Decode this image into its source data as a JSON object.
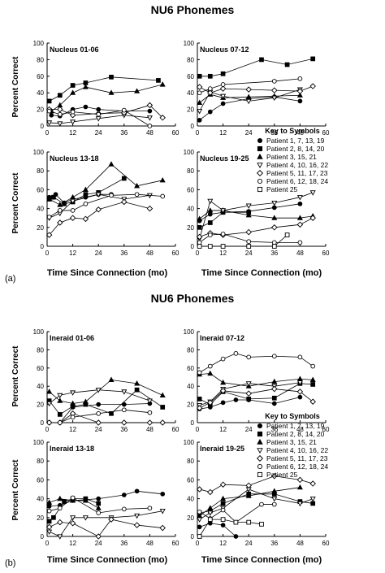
{
  "figure": {
    "title_a": "NU6 Phonemes",
    "title_b": "NU6 Phonemes",
    "label_a": "(a)",
    "label_b": "(b)",
    "ylabel": "Percent Correct",
    "xlabel": "Time Since Connection (mo)",
    "key_title": "Key to Symbols",
    "legend": [
      {
        "marker": "filled-circle",
        "label": "Patient 1, 7, 13, 19"
      },
      {
        "marker": "filled-square",
        "label": "Patient 2, 8, 14, 20"
      },
      {
        "marker": "filled-triangle",
        "label": "Patient 3, 15, 21"
      },
      {
        "marker": "open-down-triangle",
        "label": "Patient 4, 10, 16, 22"
      },
      {
        "marker": "open-diamond",
        "label": "Patient 5, 11, 17, 23"
      },
      {
        "marker": "open-circle",
        "label": "Patient 6, 12, 18, 24"
      },
      {
        "marker": "open-square",
        "label": "Patient 25"
      }
    ]
  },
  "chart_data": [
    {
      "type": "line",
      "title": "Nucleus 01-06",
      "xlim": [
        0,
        60
      ],
      "ylim": [
        0,
        100
      ],
      "xticks": [
        0,
        12,
        24,
        36,
        48,
        60
      ],
      "yticks": [
        0,
        20,
        40,
        60,
        80,
        100
      ],
      "series": [
        {
          "marker": "filled-circle",
          "x": [
            2,
            6,
            12,
            18,
            24,
            36,
            48
          ],
          "y": [
            13,
            12,
            20,
            23,
            20,
            18,
            18
          ]
        },
        {
          "marker": "filled-square",
          "x": [
            1,
            6,
            12,
            18,
            30,
            52
          ],
          "y": [
            30,
            37,
            49,
            52,
            59,
            55
          ]
        },
        {
          "marker": "filled-triangle",
          "x": [
            2,
            6,
            12,
            18,
            30,
            42,
            54
          ],
          "y": [
            18,
            25,
            40,
            47,
            40,
            42,
            50
          ]
        },
        {
          "marker": "open-down-triangle",
          "x": [
            1,
            6,
            12,
            24,
            36,
            48
          ],
          "y": [
            4,
            3,
            5,
            9,
            13,
            10
          ]
        },
        {
          "marker": "open-diamond",
          "x": [
            1,
            6,
            12,
            24,
            36,
            48,
            54
          ],
          "y": [
            20,
            20,
            13,
            15,
            16,
            25,
            10
          ]
        },
        {
          "marker": "open-circle",
          "x": [
            1,
            6,
            12,
            24,
            36,
            48
          ],
          "y": [
            18,
            14,
            17,
            14,
            19,
            0
          ]
        }
      ]
    },
    {
      "type": "line",
      "title": "Nucleus 07-12",
      "xlim": [
        0,
        60
      ],
      "ylim": [
        0,
        100
      ],
      "xticks": [
        0,
        12,
        24,
        36,
        48,
        60
      ],
      "yticks": [
        0,
        20,
        40,
        60,
        80,
        100
      ],
      "series": [
        {
          "marker": "filled-circle",
          "x": [
            1,
            6,
            12,
            24,
            36,
            48
          ],
          "y": [
            7,
            17,
            27,
            33,
            35,
            30
          ]
        },
        {
          "marker": "filled-square",
          "x": [
            1,
            6,
            12,
            30,
            42,
            54
          ],
          "y": [
            60,
            60,
            63,
            80,
            74,
            81
          ]
        },
        {
          "marker": "filled-triangle",
          "x": [
            1,
            6,
            12,
            24,
            36,
            48
          ],
          "y": [
            28,
            38,
            34,
            35,
            36,
            37
          ]
        },
        {
          "marker": "open-down-triangle",
          "x": [
            1,
            6,
            12,
            24,
            36,
            48
          ],
          "y": [
            18,
            41,
            36,
            30,
            34,
            44
          ]
        },
        {
          "marker": "open-diamond",
          "x": [
            1,
            6,
            12,
            24,
            36,
            48,
            54
          ],
          "y": [
            47,
            40,
            45,
            44,
            43,
            42,
            48
          ]
        },
        {
          "marker": "open-circle",
          "x": [
            1,
            6,
            12,
            36,
            48
          ],
          "y": [
            40,
            45,
            50,
            54,
            57
          ]
        }
      ]
    },
    {
      "type": "line",
      "title": "Nucleus 13-18",
      "xlim": [
        0,
        60
      ],
      "ylim": [
        0,
        100
      ],
      "xticks": [
        0,
        12,
        24,
        36,
        48,
        60
      ],
      "yticks": [
        0,
        20,
        40,
        60,
        80,
        100
      ],
      "series": [
        {
          "marker": "filled-circle",
          "x": [
            1,
            4,
            8,
            12,
            18,
            24,
            30
          ],
          "y": [
            52,
            55,
            46,
            50,
            52,
            55,
            55
          ]
        },
        {
          "marker": "filled-square",
          "x": [
            1,
            3,
            8,
            12,
            18,
            24,
            36
          ],
          "y": [
            50,
            52,
            45,
            47,
            55,
            57,
            72
          ]
        },
        {
          "marker": "filled-triangle",
          "x": [
            1,
            6,
            12,
            18,
            30,
            42,
            54
          ],
          "y": [
            50,
            44,
            52,
            60,
            87,
            64,
            70
          ]
        },
        {
          "marker": "open-down-triangle",
          "x": [
            1,
            6,
            12,
            24,
            36,
            48
          ],
          "y": [
            30,
            35,
            48,
            55,
            50,
            54
          ]
        },
        {
          "marker": "open-diamond",
          "x": [
            1,
            6,
            12,
            18,
            24,
            36,
            48
          ],
          "y": [
            12,
            25,
            30,
            29,
            39,
            47,
            40
          ]
        },
        {
          "marker": "open-circle",
          "x": [
            1,
            6,
            12,
            18,
            30,
            42,
            54
          ],
          "y": [
            31,
            38,
            38,
            45,
            54,
            55,
            53
          ]
        }
      ]
    },
    {
      "type": "line",
      "title": "Nucleus 19-25",
      "xlim": [
        0,
        60
      ],
      "ylim": [
        0,
        100
      ],
      "xticks": [
        0,
        12,
        24,
        36,
        48,
        60
      ],
      "yticks": [
        0,
        20,
        40,
        60,
        80,
        100
      ],
      "series": [
        {
          "marker": "filled-circle",
          "x": [
            1,
            6,
            12,
            24,
            36,
            48
          ],
          "y": [
            27,
            34,
            36,
            37,
            41,
            45
          ]
        },
        {
          "marker": "filled-square",
          "x": [
            1,
            6,
            12,
            24
          ],
          "y": [
            20,
            25,
            36,
            36
          ]
        },
        {
          "marker": "filled-triangle",
          "x": [
            1,
            6,
            12,
            24,
            36,
            48,
            54
          ],
          "y": [
            29,
            38,
            38,
            33,
            30,
            30,
            32
          ]
        },
        {
          "marker": "open-down-triangle",
          "x": [
            1,
            6,
            12,
            24,
            36,
            48,
            54
          ],
          "y": [
            8,
            48,
            38,
            43,
            46,
            52,
            57
          ]
        },
        {
          "marker": "open-diamond",
          "x": [
            1,
            6,
            12,
            24,
            36,
            48,
            54
          ],
          "y": [
            10,
            14,
            12,
            15,
            20,
            23,
            30
          ]
        },
        {
          "marker": "open-circle",
          "x": [
            1,
            6,
            12,
            24,
            36,
            48
          ],
          "y": [
            4,
            12,
            13,
            5,
            4,
            4
          ]
        },
        {
          "marker": "open-square",
          "x": [
            1,
            6,
            12,
            24,
            36,
            42
          ],
          "y": [
            0,
            0,
            0,
            0,
            0,
            12
          ]
        }
      ]
    },
    {
      "type": "line",
      "title": "Ineraid 01-06",
      "xlim": [
        0,
        60
      ],
      "ylim": [
        0,
        100
      ],
      "xticks": [
        0,
        12,
        24,
        36,
        48,
        60
      ],
      "yticks": [
        0,
        20,
        40,
        60,
        80,
        100
      ],
      "series": [
        {
          "marker": "filled-circle",
          "x": [
            1,
            6,
            12,
            24,
            36,
            48
          ],
          "y": [
            0,
            0,
            17,
            20,
            20,
            21
          ]
        },
        {
          "marker": "filled-square",
          "x": [
            1,
            6,
            12,
            18,
            30,
            42,
            54
          ],
          "y": [
            24,
            9,
            18,
            20,
            10,
            36,
            17
          ]
        },
        {
          "marker": "filled-triangle",
          "x": [
            1,
            6,
            12,
            18,
            30,
            42,
            54
          ],
          "y": [
            34,
            24,
            21,
            23,
            47,
            43,
            30
          ]
        },
        {
          "marker": "open-down-triangle",
          "x": [
            1,
            6,
            12,
            24,
            36,
            48
          ],
          "y": [
            21,
            30,
            33,
            36,
            34,
            24
          ]
        },
        {
          "marker": "open-diamond",
          "x": [
            1,
            6,
            12,
            24,
            36,
            48,
            54
          ],
          "y": [
            0,
            0,
            10,
            0,
            0,
            0,
            0
          ]
        },
        {
          "marker": "open-circle",
          "x": [
            1,
            6,
            12,
            24,
            36,
            48
          ],
          "y": [
            0,
            0,
            6,
            10,
            14,
            11
          ]
        }
      ]
    },
    {
      "type": "line",
      "title": "Ineraid 07-12",
      "xlim": [
        0,
        60
      ],
      "ylim": [
        0,
        100
      ],
      "xticks": [
        0,
        12,
        24,
        36,
        48,
        60
      ],
      "yticks": [
        0,
        20,
        40,
        60,
        80,
        100
      ],
      "series": [
        {
          "marker": "filled-circle",
          "x": [
            1,
            6,
            12,
            18,
            24,
            36,
            48
          ],
          "y": [
            15,
            17,
            22,
            25,
            25,
            21,
            28
          ]
        },
        {
          "marker": "filled-square",
          "x": [
            1,
            6,
            12,
            24,
            36,
            48,
            54
          ],
          "y": [
            26,
            20,
            34,
            26,
            27,
            43,
            42
          ]
        },
        {
          "marker": "filled-triangle",
          "x": [
            1,
            6,
            12,
            24,
            36,
            48,
            54
          ],
          "y": [
            53,
            54,
            44,
            40,
            45,
            48,
            47
          ]
        },
        {
          "marker": "open-down-triangle",
          "x": [
            1,
            6,
            12,
            24,
            36,
            48
          ],
          "y": [
            19,
            23,
            37,
            43,
            40,
            44
          ]
        },
        {
          "marker": "open-diamond",
          "x": [
            1,
            6,
            12,
            24,
            36,
            48,
            54
          ],
          "y": [
            16,
            22,
            35,
            32,
            37,
            34,
            23
          ]
        },
        {
          "marker": "open-circle",
          "x": [
            1,
            6,
            12,
            18,
            24,
            36,
            48,
            54
          ],
          "y": [
            55,
            62,
            70,
            76,
            72,
            73,
            72,
            62
          ]
        }
      ]
    },
    {
      "type": "line",
      "title": "Ineraid 13-18",
      "xlim": [
        0,
        60
      ],
      "ylim": [
        0,
        100
      ],
      "xticks": [
        0,
        12,
        24,
        36,
        48,
        60
      ],
      "yticks": [
        0,
        20,
        40,
        60,
        80,
        100
      ],
      "series": [
        {
          "marker": "filled-circle",
          "x": [
            1,
            6,
            12,
            24,
            36,
            42,
            54
          ],
          "y": [
            32,
            33,
            38,
            40,
            44,
            48,
            45
          ]
        },
        {
          "marker": "filled-square",
          "x": [
            1,
            3,
            8,
            12,
            18,
            24
          ],
          "y": [
            16,
            20,
            37,
            40,
            40,
            35
          ]
        },
        {
          "marker": "filled-triangle",
          "x": [
            1,
            6,
            12,
            18,
            24
          ],
          "y": [
            36,
            40,
            38,
            38,
            30
          ]
        },
        {
          "marker": "open-down-triangle",
          "x": [
            1,
            6,
            12,
            18,
            30,
            42,
            54
          ],
          "y": [
            5,
            0,
            20,
            20,
            20,
            22,
            27
          ]
        },
        {
          "marker": "open-diamond",
          "x": [
            1,
            6,
            12,
            24,
            30,
            42,
            54
          ],
          "y": [
            10,
            15,
            14,
            0,
            18,
            12,
            9
          ]
        },
        {
          "marker": "open-circle",
          "x": [
            1,
            6,
            12,
            24,
            36,
            48
          ],
          "y": [
            27,
            30,
            41,
            25,
            29,
            30
          ]
        }
      ]
    },
    {
      "type": "line",
      "title": "Ineraid 19-25",
      "xlim": [
        0,
        60
      ],
      "ylim": [
        0,
        100
      ],
      "xticks": [
        0,
        12,
        24,
        36,
        48,
        60
      ],
      "yticks": [
        0,
        20,
        40,
        60,
        80,
        100
      ],
      "series": [
        {
          "marker": "filled-circle",
          "x": [
            1,
            6,
            12,
            18
          ],
          "y": [
            10,
            14,
            12,
            0
          ]
        },
        {
          "marker": "filled-square",
          "x": [
            1,
            6,
            12,
            24,
            36,
            48,
            54
          ],
          "y": [
            25,
            27,
            35,
            45,
            45,
            37,
            35
          ]
        },
        {
          "marker": "filled-triangle",
          "x": [
            1,
            6,
            12,
            24,
            36,
            48
          ],
          "y": [
            22,
            30,
            40,
            43,
            48,
            52
          ]
        },
        {
          "marker": "open-down-triangle",
          "x": [
            1,
            6,
            12,
            24,
            36,
            48,
            54
          ],
          "y": [
            18,
            25,
            30,
            50,
            40,
            35,
            40
          ]
        },
        {
          "marker": "open-diamond",
          "x": [
            1,
            6,
            12,
            24,
            36,
            48,
            54
          ],
          "y": [
            50,
            47,
            55,
            54,
            64,
            60,
            56
          ]
        },
        {
          "marker": "open-circle",
          "x": [
            1,
            6,
            12,
            18,
            30,
            36
          ],
          "y": [
            26,
            19,
            28,
            15,
            34,
            34
          ]
        },
        {
          "marker": "open-square",
          "x": [
            1,
            6,
            12,
            18,
            24,
            30
          ],
          "y": [
            0,
            18,
            18,
            15,
            15,
            13
          ]
        }
      ]
    }
  ]
}
